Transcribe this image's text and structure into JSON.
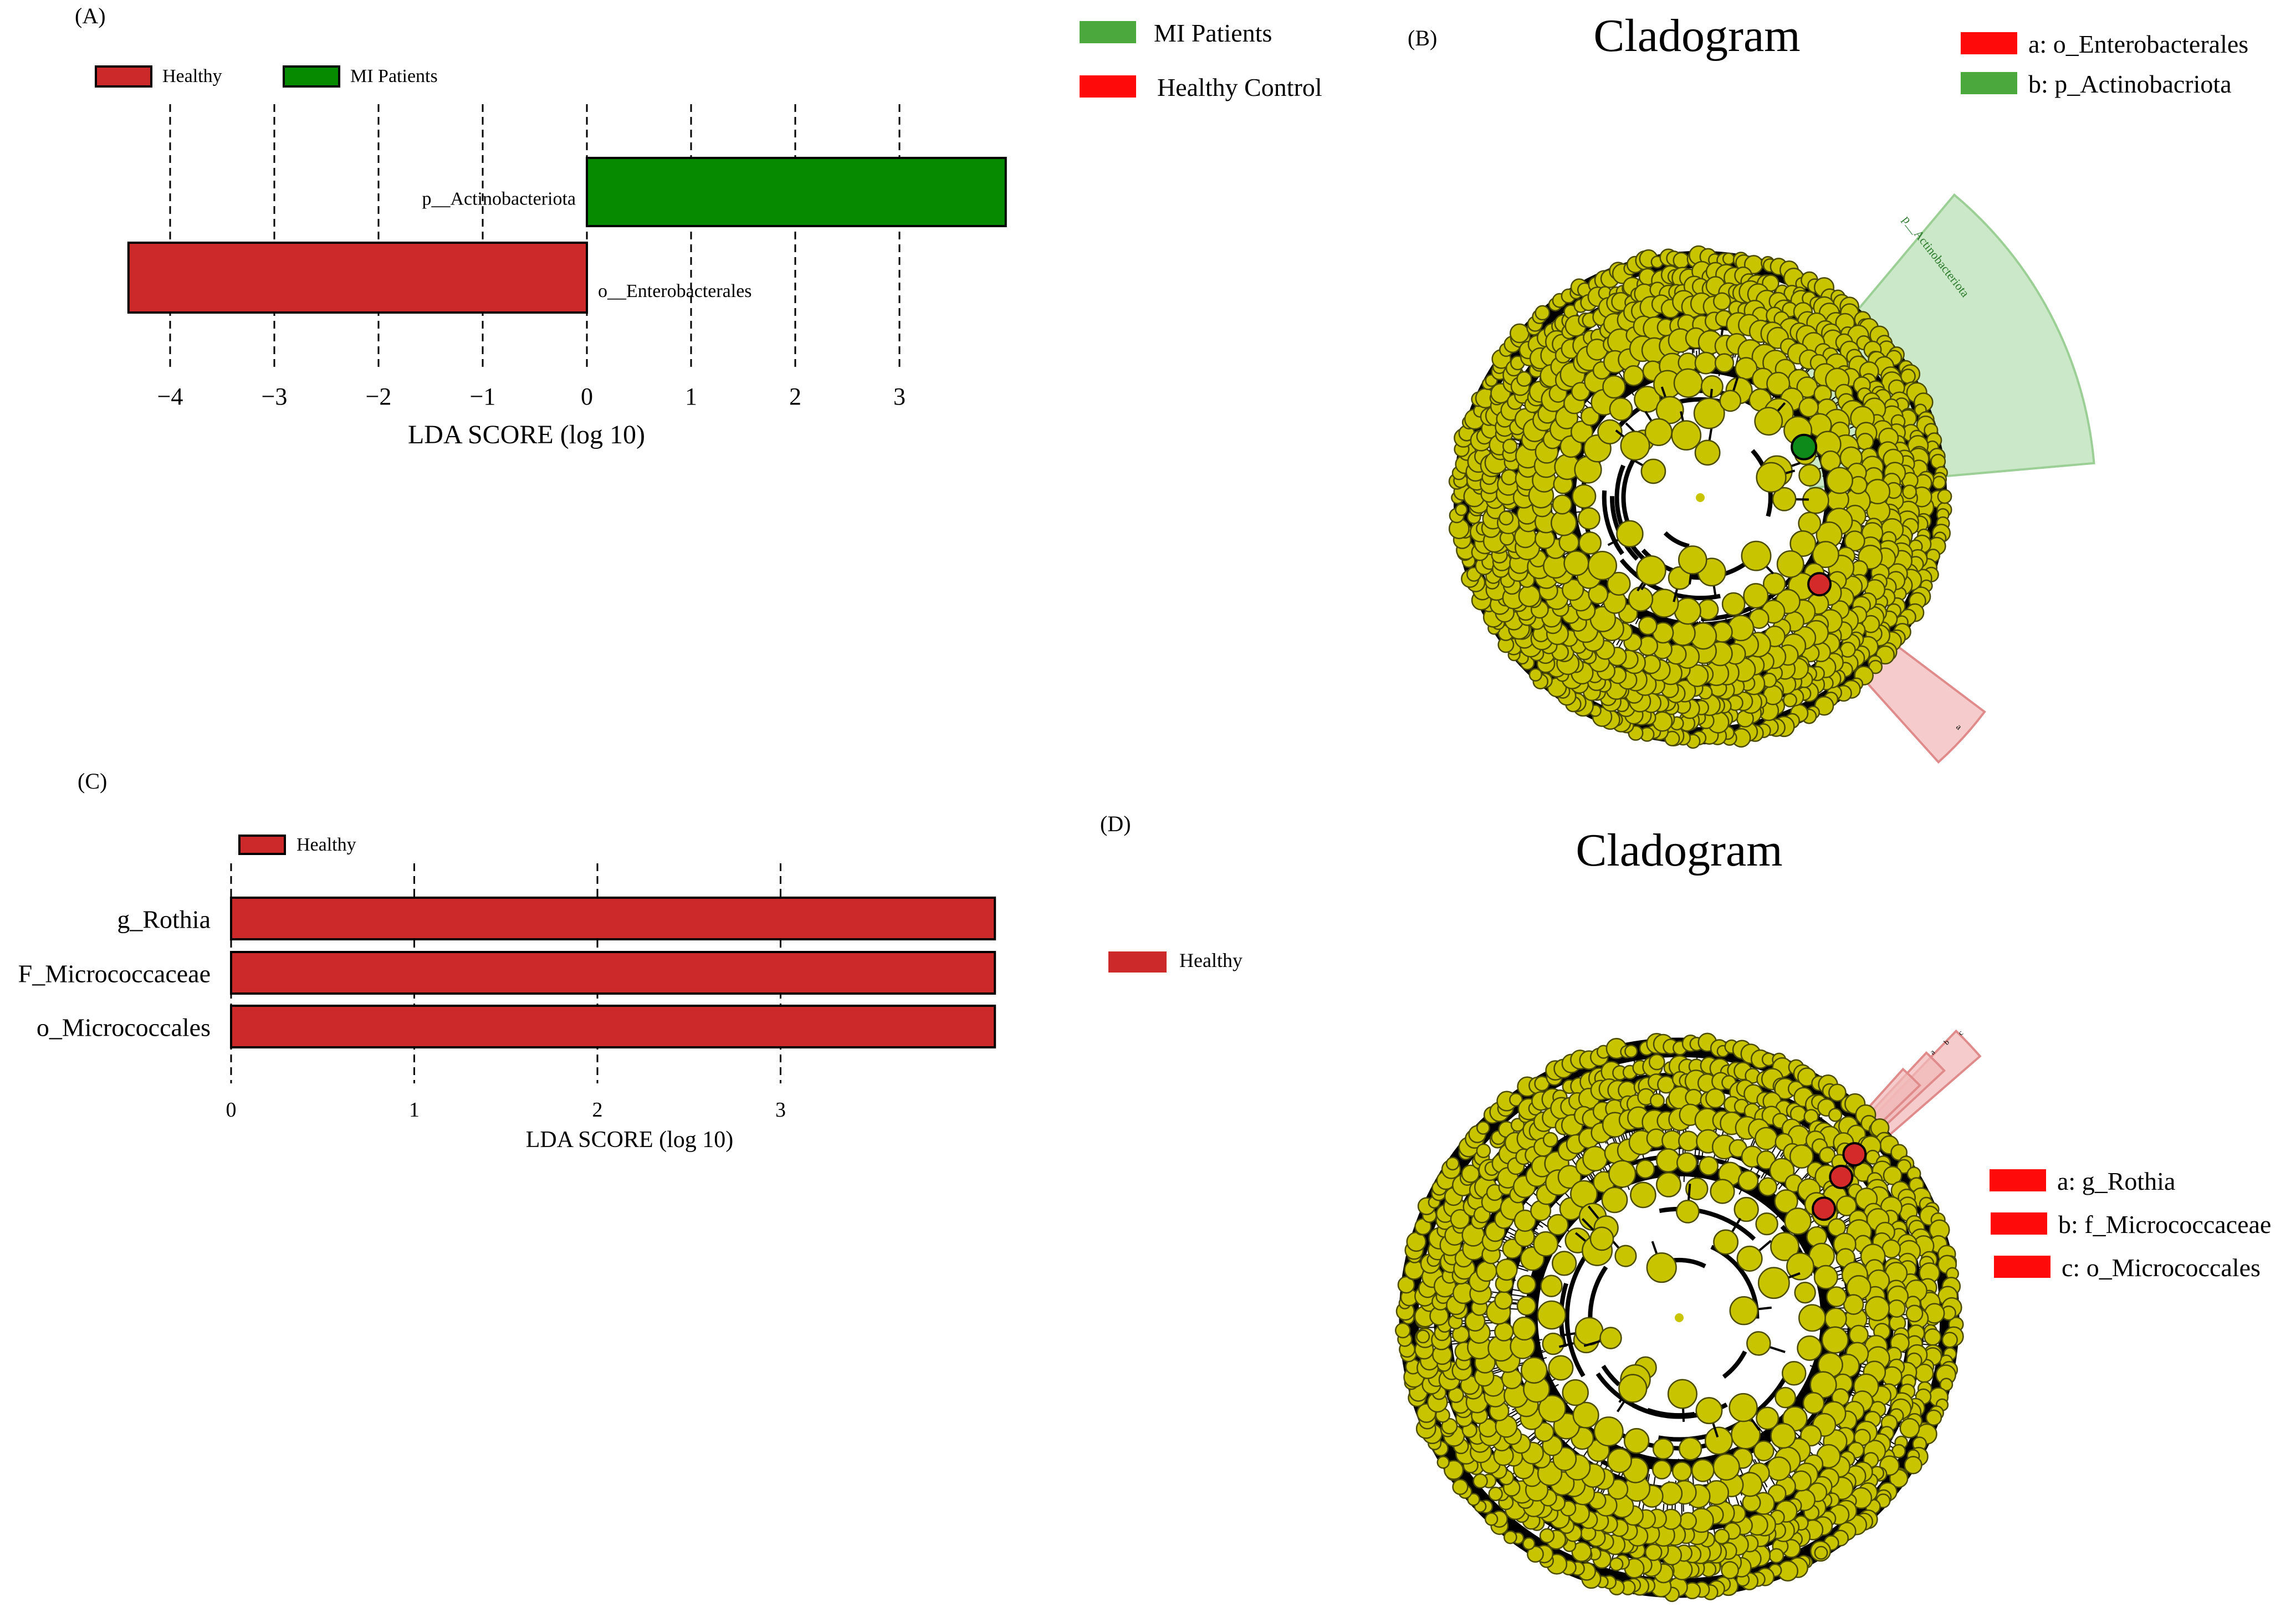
{
  "colors": {
    "healthy": "#cc2a2a",
    "mi": "#068a00",
    "legend_green": "#4aa83c",
    "legend_red": "#ff0a0a",
    "node": "#c9c400",
    "node_stroke": "#4a4a00",
    "clade_green": "#b9e2b5",
    "clade_red": "#f2b9b9"
  },
  "panel_a": {
    "label": "(A)",
    "legend": [
      {
        "name": "Healthy",
        "color": "#cc2a2a"
      },
      {
        "name": "MI Patients",
        "color": "#068a00"
      }
    ],
    "xlabel": "LDA SCORE (log 10)"
  },
  "panel_b": {
    "label": "(B)",
    "title": "Cladogram",
    "group_legend": [
      {
        "name": "MI Patients",
        "color": "#4aa83c"
      },
      {
        "name": "Healthy Control",
        "color": "#ff0a0a"
      }
    ],
    "taxa_legend": [
      {
        "name": "a: o_Enterobacterales",
        "color": "#ff0a0a"
      },
      {
        "name": "b: p_Actinobacriota",
        "color": "#4aa83c"
      }
    ],
    "clade_label_green": "p__Actinobacteriota",
    "clade_label_red": "a"
  },
  "panel_c": {
    "label": "(C)",
    "legend": [
      {
        "name": "Healthy",
        "color": "#cc2a2a"
      }
    ],
    "xlabel": "LDA SCORE (log 10)"
  },
  "panel_d": {
    "label": "(D)",
    "title": "Cladogram",
    "group_legend": [
      {
        "name": "Healthy",
        "color": "#cc2a2a"
      }
    ],
    "taxa_legend": [
      {
        "name": "a: g_Rothia",
        "color": "#ff0a0a"
      },
      {
        "name": "b: f_Micrococcaceae",
        "color": "#ff0a0a"
      },
      {
        "name": "c: o_Micrococcales",
        "color": "#ff0a0a"
      }
    ],
    "clade_labels": [
      "a",
      "b",
      "c"
    ]
  },
  "chart_data": [
    {
      "type": "bar",
      "orientation": "horizontal",
      "panel": "A",
      "categories": [
        "p__Actinobacteriota",
        "o__Enterobacterales"
      ],
      "values": [
        4.02,
        -4.4
      ],
      "groups": [
        "MI Patients",
        "Healthy"
      ],
      "xlabel": "LDA SCORE (log 10)",
      "xticks": [
        -4,
        -3,
        -2,
        -1,
        0,
        1,
        2,
        3
      ],
      "xlim": [
        -4.4,
        4.02
      ],
      "grid": "vertical dashed at ticks",
      "legend_position": "top-left"
    },
    {
      "type": "bar",
      "orientation": "horizontal",
      "panel": "C",
      "categories": [
        "g_Rothia",
        "F_Micrococcaceae",
        "o_Micrococcales"
      ],
      "values": [
        4.17,
        4.17,
        4.17
      ],
      "groups": [
        "Healthy",
        "Healthy",
        "Healthy"
      ],
      "xlabel": "LDA SCORE (log 10)",
      "xticks": [
        0,
        1,
        2,
        3
      ],
      "xlim": [
        0,
        4.17
      ],
      "grid": "vertical dashed at ticks",
      "legend_position": "top-left"
    }
  ]
}
